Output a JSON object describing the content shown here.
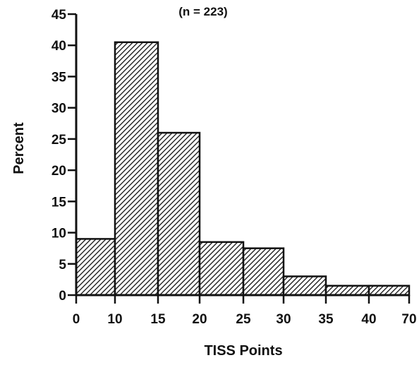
{
  "chart_data": {
    "type": "bar",
    "subtitle": "(n = 223)",
    "xlabel": "TISS Points",
    "ylabel": "Percent",
    "bin_edges": [
      "0",
      "10",
      "15",
      "20",
      "25",
      "30",
      "35",
      "40",
      "70"
    ],
    "values": [
      9,
      40.5,
      26,
      8.5,
      7.5,
      3,
      1.5,
      1.5
    ],
    "yticks": [
      0,
      5,
      10,
      15,
      20,
      25,
      30,
      35,
      40,
      45
    ],
    "ylim": [
      0,
      45
    ],
    "grid": false,
    "legend": "none",
    "bar_fill": "hatched",
    "bar_color": "#111111"
  }
}
